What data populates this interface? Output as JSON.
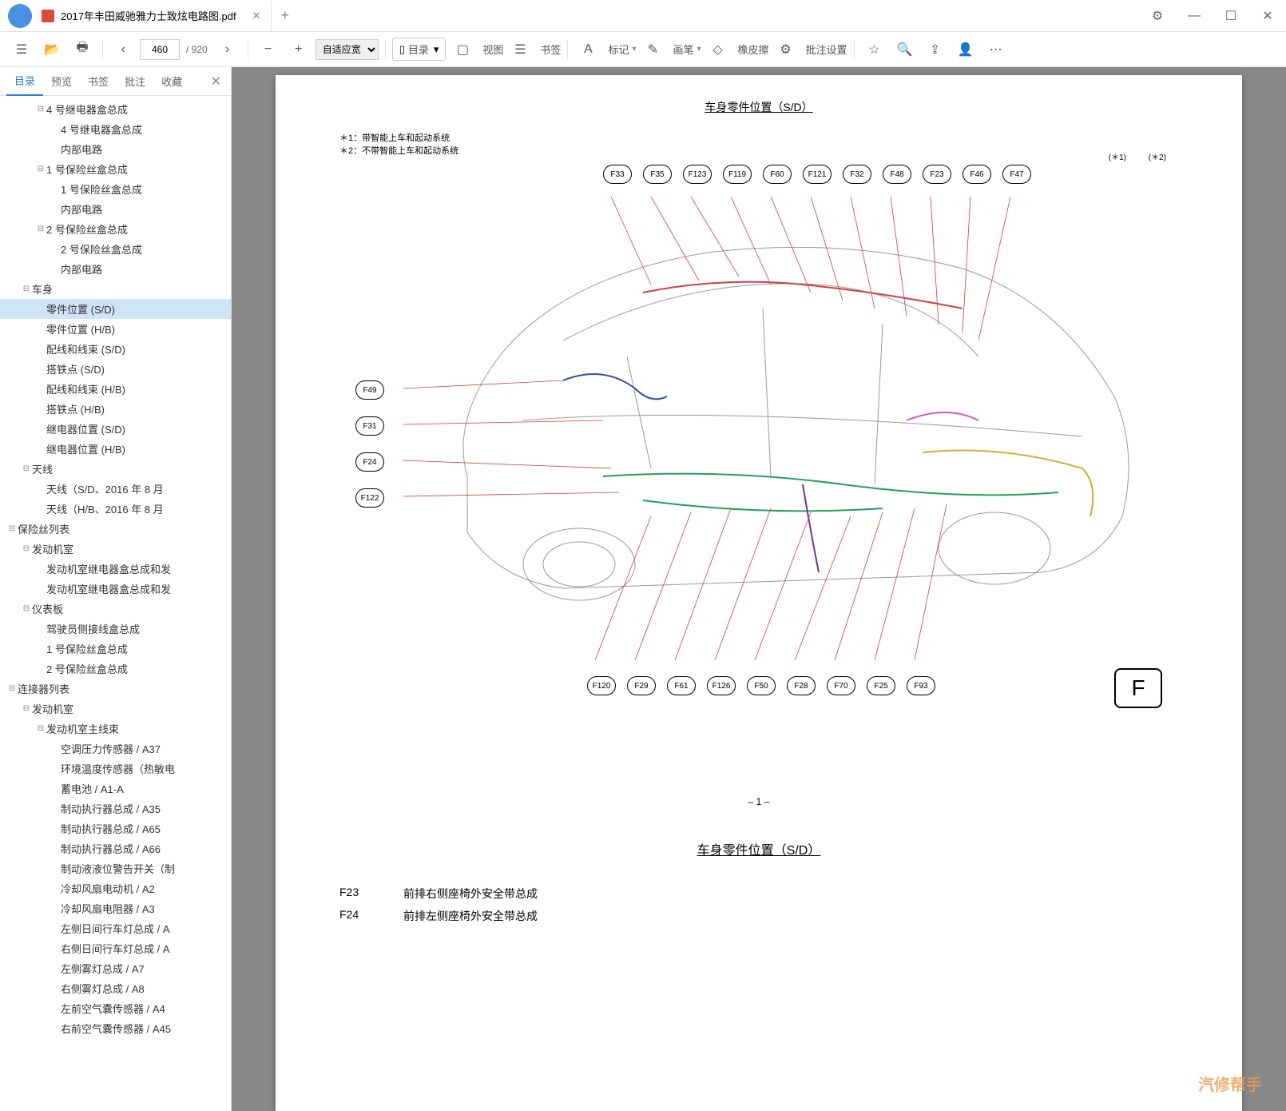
{
  "window": {
    "tab_title": "2017年丰田威驰雅力士致炫电路图.pdf",
    "minimize": "—",
    "maximize": "☐",
    "close": "✕",
    "settings_icon": "⚙"
  },
  "toolbar": {
    "page_current": "460",
    "page_total": "/ 920",
    "zoom_label": "自适应宽",
    "outline_label": "目录",
    "view_label": "视图",
    "bookmark_label": "书签",
    "mark_label": "标记",
    "pen_label": "画笔",
    "eraser_label": "橡皮擦",
    "annotate_label": "批注设置"
  },
  "sidebar": {
    "tabs": [
      "目录",
      "预览",
      "书签",
      "批注",
      "收藏"
    ],
    "active_tab": 0,
    "tree": [
      {
        "indent": 2,
        "toggle": "⊟",
        "label": "4 号继电器盒总成"
      },
      {
        "indent": 3,
        "toggle": "",
        "label": "4 号继电器盒总成"
      },
      {
        "indent": 3,
        "toggle": "",
        "label": "内部电路"
      },
      {
        "indent": 2,
        "toggle": "⊟",
        "label": "1 号保险丝盒总成"
      },
      {
        "indent": 3,
        "toggle": "",
        "label": "1 号保险丝盒总成"
      },
      {
        "indent": 3,
        "toggle": "",
        "label": "内部电路"
      },
      {
        "indent": 2,
        "toggle": "⊟",
        "label": "2 号保险丝盒总成"
      },
      {
        "indent": 3,
        "toggle": "",
        "label": "2 号保险丝盒总成"
      },
      {
        "indent": 3,
        "toggle": "",
        "label": "内部电路"
      },
      {
        "indent": 1,
        "toggle": "⊟",
        "label": "车身"
      },
      {
        "indent": 2,
        "toggle": "",
        "label": "零件位置 (S/D)",
        "selected": true
      },
      {
        "indent": 2,
        "toggle": "",
        "label": "零件位置 (H/B)"
      },
      {
        "indent": 2,
        "toggle": "",
        "label": "配线和线束 (S/D)"
      },
      {
        "indent": 2,
        "toggle": "",
        "label": "搭铁点 (S/D)"
      },
      {
        "indent": 2,
        "toggle": "",
        "label": "配线和线束 (H/B)"
      },
      {
        "indent": 2,
        "toggle": "",
        "label": "搭铁点 (H/B)"
      },
      {
        "indent": 2,
        "toggle": "",
        "label": "继电器位置 (S/D)"
      },
      {
        "indent": 2,
        "toggle": "",
        "label": "继电器位置 (H/B)"
      },
      {
        "indent": 1,
        "toggle": "⊟",
        "label": "天线"
      },
      {
        "indent": 2,
        "toggle": "",
        "label": "天线（S/D、2016 年 8 月"
      },
      {
        "indent": 2,
        "toggle": "",
        "label": "天线（H/B、2016 年 8 月"
      },
      {
        "indent": 0,
        "toggle": "⊟",
        "label": "保险丝列表"
      },
      {
        "indent": 1,
        "toggle": "⊟",
        "label": "发动机室"
      },
      {
        "indent": 2,
        "toggle": "",
        "label": "发动机室继电器盒总成和发"
      },
      {
        "indent": 2,
        "toggle": "",
        "label": "发动机室继电器盒总成和发"
      },
      {
        "indent": 1,
        "toggle": "⊟",
        "label": "仪表板"
      },
      {
        "indent": 2,
        "toggle": "",
        "label": "驾驶员侧接线盒总成"
      },
      {
        "indent": 2,
        "toggle": "",
        "label": "1 号保险丝盒总成"
      },
      {
        "indent": 2,
        "toggle": "",
        "label": "2 号保险丝盒总成"
      },
      {
        "indent": 0,
        "toggle": "⊟",
        "label": "连接器列表"
      },
      {
        "indent": 1,
        "toggle": "⊟",
        "label": "发动机室"
      },
      {
        "indent": 2,
        "toggle": "⊟",
        "label": "发动机室主线束"
      },
      {
        "indent": 3,
        "toggle": "",
        "label": "空调压力传感器 / A37"
      },
      {
        "indent": 3,
        "toggle": "",
        "label": "环境温度传感器（热敏电"
      },
      {
        "indent": 3,
        "toggle": "",
        "label": "蓄电池 / A1-A"
      },
      {
        "indent": 3,
        "toggle": "",
        "label": "制动执行器总成 / A35"
      },
      {
        "indent": 3,
        "toggle": "",
        "label": "制动执行器总成 / A65"
      },
      {
        "indent": 3,
        "toggle": "",
        "label": "制动执行器总成 / A66"
      },
      {
        "indent": 3,
        "toggle": "",
        "label": "制动液液位警告开关（制"
      },
      {
        "indent": 3,
        "toggle": "",
        "label": "冷却风扇电动机 / A2"
      },
      {
        "indent": 3,
        "toggle": "",
        "label": "冷却风扇电阻器 / A3"
      },
      {
        "indent": 3,
        "toggle": "",
        "label": "左侧日间行车灯总成 / A"
      },
      {
        "indent": 3,
        "toggle": "",
        "label": "右侧日间行车灯总成 / A"
      },
      {
        "indent": 3,
        "toggle": "",
        "label": "左侧雾灯总成 / A7"
      },
      {
        "indent": 3,
        "toggle": "",
        "label": "右侧雾灯总成 / A8"
      },
      {
        "indent": 3,
        "toggle": "",
        "label": "左前空气囊传感器 / A4"
      },
      {
        "indent": 3,
        "toggle": "",
        "label": "右前空气囊传感器 / A45"
      }
    ]
  },
  "document": {
    "page1_title": "车身零件位置（S/D）",
    "note1": "＊1：带智能上车和起动系统",
    "note2": "＊2：不带智能上车和起动系统",
    "header_star1": "(＊1)",
    "header_star2": "(＊2)",
    "callouts_top": [
      "F33",
      "F35",
      "F123",
      "F119",
      "F60",
      "F121",
      "F32",
      "F48",
      "F23",
      "F46",
      "F47"
    ],
    "callouts_left": [
      "F49",
      "F31",
      "F24",
      "F122"
    ],
    "callouts_bottom": [
      "F120",
      "F29",
      "F61",
      "F126",
      "F50",
      "F28",
      "F70",
      "F25",
      "F93"
    ],
    "big_f": "F",
    "page_num": "– 1 –",
    "page2_title": "车身零件位置（S/D）",
    "parts": [
      {
        "code": "F23",
        "desc": "前排右侧座椅外安全带总成"
      },
      {
        "code": "F24",
        "desc": "前排左侧座椅外安全带总成"
      }
    ],
    "watermark": "汽修帮手",
    "wire_colors": {
      "red": "#d04040",
      "blue": "#3050a0",
      "green": "#20a060",
      "yellow": "#d0b030",
      "purple": "#7030a0",
      "pink": "#d060a0"
    }
  }
}
